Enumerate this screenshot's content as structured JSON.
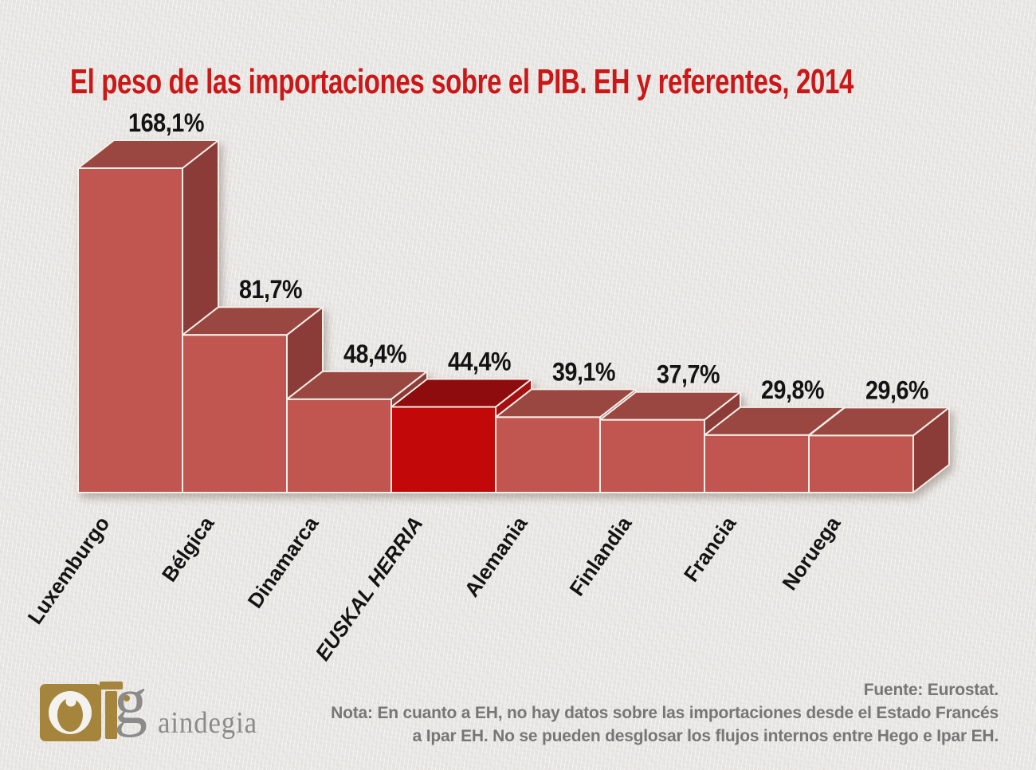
{
  "page": {
    "background_color": "#e9e7e4"
  },
  "chart_data": {
    "type": "bar",
    "style": "3d-staircase",
    "orientation": "vertical",
    "title": "El peso de las importaciones sobre el PIB. EH y referentes, 2014",
    "title_color": "#cb1717",
    "categories": [
      "Luxemburgo",
      "Bélgica",
      "Dinamarca",
      "EUSKAL HERRIA",
      "Alemania",
      "Finlandia",
      "Francia",
      "Noruega"
    ],
    "values": [
      168.1,
      81.7,
      48.4,
      44.4,
      39.1,
      37.7,
      29.8,
      29.6
    ],
    "value_labels": [
      "168,1%",
      "81,7%",
      "48,4%",
      "44,4%",
      "39,1%",
      "37,7%",
      "29,8%",
      "29,6%"
    ],
    "unit": "%",
    "highlight_index": 3,
    "highlight_category": "EUSKAL HERRIA",
    "gridlines": false,
    "legend": false,
    "axis_lines": false,
    "colors": {
      "bar_front": "#c0564f",
      "bar_top": "#9b4741",
      "bar_side": "#8c3c38",
      "highlight_front": "#c20808",
      "highlight_top": "#8e0c0d",
      "highlight_side": "#a60f11",
      "edge": "#f3efe8",
      "label": "#131313"
    }
  },
  "footer": {
    "source": "Fuente: Eurostat.",
    "note_lines": [
      "Nota: En cuanto a EH, no hay datos sobre las importaciones desde el Estado Francés",
      "a Ipar EH. No se pueden desglosar los flujos internos entre Hego e Ipar EH."
    ],
    "text_color": "#777674"
  },
  "logo": {
    "initial": "g",
    "rest": "aindegia",
    "gold": "#a5853c",
    "white": "#f4f2ee",
    "grey": "#8b8b8b"
  }
}
